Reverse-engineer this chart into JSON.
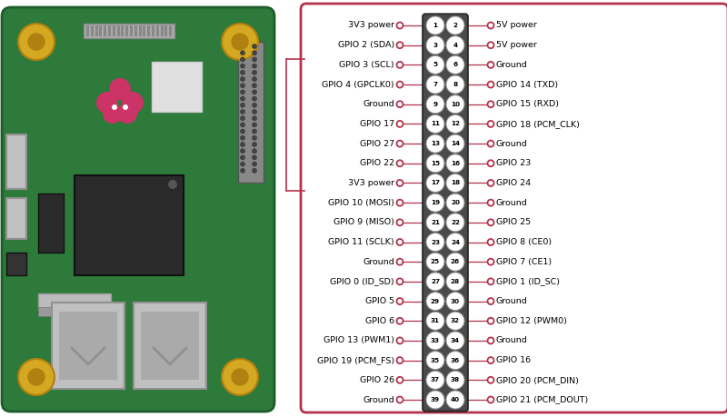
{
  "bg_color": "#ffffff",
  "box_color": "#b5324a",
  "connector_color": "#4a4a4a",
  "line_color": "#b5324a",
  "dot_color": "#b5324a",
  "left_labels": [
    "3V3 power",
    "GPIO 2 (SDA)",
    "GPIO 3 (SCL)",
    "GPIO 4 (GPCLK0)",
    "Ground",
    "GPIO 17",
    "GPIO 27",
    "GPIO 22",
    "3V3 power",
    "GPIO 10 (MOSI)",
    "GPIO 9 (MISO)",
    "GPIO 11 (SCLK)",
    "Ground",
    "GPIO 0 (ID_SD)",
    "GPIO 5",
    "GPIO 6",
    "GPIO 13 (PWM1)",
    "GPIO 19 (PCM_FS)",
    "GPIO 26",
    "Ground"
  ],
  "right_labels": [
    "5V power",
    "5V power",
    "Ground",
    "GPIO 14 (TXD)",
    "GPIO 15 (RXD)",
    "GPIO 18 (PCM_CLK)",
    "Ground",
    "GPIO 23",
    "GPIO 24",
    "Ground",
    "GPIO 25",
    "GPIO 8 (CE0)",
    "GPIO 7 (CE1)",
    "GPIO 1 (ID_SC)",
    "Ground",
    "GPIO 12 (PWM0)",
    "Ground",
    "GPIO 16",
    "GPIO 20 (PCM_DIN)",
    "GPIO 21 (PCM_DOUT)"
  ],
  "left_pin_numbers": [
    1,
    3,
    5,
    7,
    9,
    11,
    13,
    15,
    17,
    19,
    21,
    23,
    25,
    27,
    29,
    31,
    33,
    35,
    37,
    39
  ],
  "right_pin_numbers": [
    2,
    4,
    6,
    8,
    10,
    12,
    14,
    16,
    18,
    20,
    22,
    24,
    26,
    28,
    30,
    32,
    34,
    36,
    38,
    40
  ],
  "n_rows": 20,
  "text_fontsize": 6.8,
  "pin_fontsize": 5.2,
  "board_green": "#2d7a3a",
  "board_dark_green": "#1e5c2a",
  "gold_color": "#d4a820",
  "gold_dark": "#b08010",
  "chip_dark": "#2a2a2a",
  "chip_light": "#c8c8c8",
  "usb_color": "#c0c0c0",
  "usb_dark": "#909090"
}
